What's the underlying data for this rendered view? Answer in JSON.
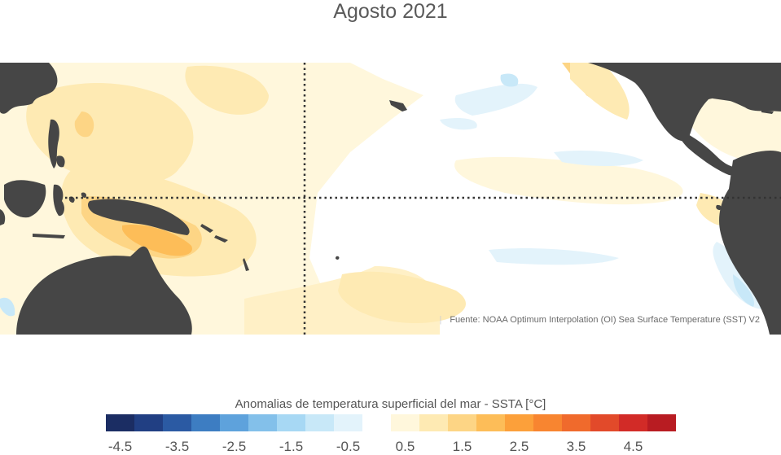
{
  "title": "Agosto 2021",
  "source": "Fuente: NOAA Optimum Interpolation (OI) Sea Surface Temperature (SST) V2",
  "colorbar": {
    "title": "Anomalias de temperatura superficial del mar - SSTA  [°C]",
    "colors": [
      "#1b2d63",
      "#213f83",
      "#2b5aa3",
      "#3d7dc2",
      "#5ea2dc",
      "#83c0ea",
      "#a7d8f4",
      "#c8e8f8",
      "#e3f3fb",
      "#ffffff",
      "#fff7dc",
      "#feeab3",
      "#fdd585",
      "#fdbd58",
      "#fca03a",
      "#f88530",
      "#f06a2c",
      "#e24a2a",
      "#d22b27",
      "#b81c22"
    ],
    "tick_labels": [
      "-4.5",
      "-3.5",
      "-2.5",
      "-1.5",
      "-0.5",
      "0.5",
      "1.5",
      "2.5",
      "3.5",
      "4.5"
    ]
  },
  "map": {
    "land_color": "#464646",
    "reference_lines": [
      "equator",
      "dateline"
    ]
  }
}
